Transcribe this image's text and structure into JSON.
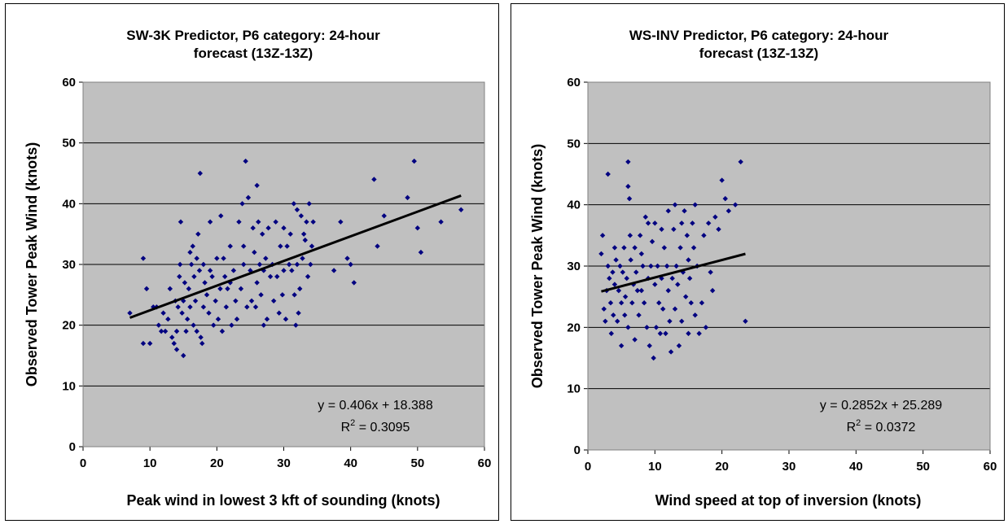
{
  "chart_data": [
    {
      "type": "scatter",
      "title_line1": "SW-3K Predictor, P6 category: 24-hour",
      "title_line2": "forecast (13Z-13Z)",
      "xlabel": "Peak wind in lowest 3 kft of sounding (knots)",
      "ylabel": "Observed Tower Peak Wind (knots)",
      "xlim": [
        0,
        60
      ],
      "ylim": [
        0,
        60
      ],
      "xticks": [
        "0",
        "10",
        "20",
        "30",
        "40",
        "50",
        "60"
      ],
      "yticks": [
        "0",
        "10",
        "20",
        "30",
        "40",
        "50",
        "60"
      ],
      "grid": "horizontal",
      "plot_bg": "#c0c0c0",
      "marker_color": "#000080",
      "equation": "y = 0.406x + 18.388",
      "r2_prefix": "R",
      "r2_sup": "2",
      "r2_value": " = 0.3095",
      "trendline": {
        "slope": 0.406,
        "intercept": 18.388,
        "x_range": [
          7,
          56.5
        ]
      },
      "points": [
        [
          7,
          22
        ],
        [
          9,
          17
        ],
        [
          9,
          31
        ],
        [
          9.5,
          26
        ],
        [
          10,
          17
        ],
        [
          10.5,
          23
        ],
        [
          11,
          23
        ],
        [
          11.3,
          20
        ],
        [
          11.7,
          19
        ],
        [
          12,
          22
        ],
        [
          12.3,
          19
        ],
        [
          12.7,
          21
        ],
        [
          13,
          26
        ],
        [
          13.3,
          18
        ],
        [
          13.6,
          17
        ],
        [
          13.8,
          24
        ],
        [
          14,
          16
        ],
        [
          14,
          19
        ],
        [
          14.2,
          23
        ],
        [
          14.4,
          28
        ],
        [
          14.5,
          30
        ],
        [
          14.6,
          37
        ],
        [
          14.8,
          22
        ],
        [
          15,
          15
        ],
        [
          15,
          24
        ],
        [
          15.2,
          27
        ],
        [
          15.4,
          19
        ],
        [
          15.6,
          21
        ],
        [
          15.8,
          26
        ],
        [
          16,
          32
        ],
        [
          16,
          23
        ],
        [
          16.2,
          30
        ],
        [
          16.4,
          33
        ],
        [
          16.5,
          20
        ],
        [
          16.6,
          28
        ],
        [
          16.8,
          24
        ],
        [
          17,
          19
        ],
        [
          17,
          31
        ],
        [
          17.2,
          35
        ],
        [
          17.4,
          29
        ],
        [
          17.5,
          45
        ],
        [
          17.6,
          18
        ],
        [
          17.8,
          17
        ],
        [
          18,
          23
        ],
        [
          18,
          30
        ],
        [
          18.2,
          27
        ],
        [
          18.5,
          25
        ],
        [
          18.8,
          22
        ],
        [
          19,
          29
        ],
        [
          19,
          37
        ],
        [
          19.3,
          28
        ],
        [
          19.5,
          20
        ],
        [
          19.8,
          24
        ],
        [
          20,
          31
        ],
        [
          20.2,
          21
        ],
        [
          20.5,
          26
        ],
        [
          20.6,
          38
        ],
        [
          20.8,
          19
        ],
        [
          21,
          31
        ],
        [
          21.2,
          28
        ],
        [
          21.4,
          23
        ],
        [
          21.6,
          26
        ],
        [
          22,
          27
        ],
        [
          22,
          33
        ],
        [
          22.2,
          20
        ],
        [
          22.5,
          29
        ],
        [
          22.8,
          24
        ],
        [
          23,
          21
        ],
        [
          23.3,
          37
        ],
        [
          23.6,
          26
        ],
        [
          23.8,
          40
        ],
        [
          24,
          30
        ],
        [
          24,
          33
        ],
        [
          24.3,
          47
        ],
        [
          24.5,
          23
        ],
        [
          24.7,
          41
        ],
        [
          25,
          29
        ],
        [
          25.2,
          24
        ],
        [
          25.4,
          36
        ],
        [
          25.6,
          32
        ],
        [
          25.8,
          23
        ],
        [
          26,
          43
        ],
        [
          26,
          27
        ],
        [
          26.2,
          37
        ],
        [
          26.4,
          30
        ],
        [
          26.6,
          25
        ],
        [
          26.8,
          35
        ],
        [
          27,
          20
        ],
        [
          27,
          29
        ],
        [
          27.3,
          31
        ],
        [
          27.5,
          21
        ],
        [
          27.7,
          36
        ],
        [
          28,
          28
        ],
        [
          28.3,
          30
        ],
        [
          28.5,
          24
        ],
        [
          28.8,
          37
        ],
        [
          29,
          28
        ],
        [
          29.3,
          22
        ],
        [
          29.5,
          33
        ],
        [
          29.8,
          25
        ],
        [
          30,
          29
        ],
        [
          30,
          36
        ],
        [
          30.3,
          21
        ],
        [
          30.5,
          33
        ],
        [
          30.8,
          30
        ],
        [
          31,
          35
        ],
        [
          31.2,
          29
        ],
        [
          31.5,
          40
        ],
        [
          31.6,
          25
        ],
        [
          31.8,
          20
        ],
        [
          32,
          30
        ],
        [
          32,
          39
        ],
        [
          32.2,
          22
        ],
        [
          32.4,
          26
        ],
        [
          32.6,
          38
        ],
        [
          32.8,
          31
        ],
        [
          33,
          35
        ],
        [
          33.2,
          34
        ],
        [
          33.4,
          37
        ],
        [
          33.6,
          28
        ],
        [
          33.8,
          40
        ],
        [
          34,
          30
        ],
        [
          34.2,
          33
        ],
        [
          34.4,
          37
        ],
        [
          37.5,
          29
        ],
        [
          38.5,
          37
        ],
        [
          39.5,
          31
        ],
        [
          40,
          30
        ],
        [
          40.5,
          27
        ],
        [
          43.5,
          44
        ],
        [
          44,
          33
        ],
        [
          45,
          38
        ],
        [
          48.5,
          41
        ],
        [
          49.5,
          47
        ],
        [
          50,
          36
        ],
        [
          50.5,
          32
        ],
        [
          53.5,
          37
        ],
        [
          56.5,
          39
        ]
      ]
    },
    {
      "type": "scatter",
      "title_line1": "WS-INV Predictor, P6 category: 24-hour",
      "title_line2": "forecast (13Z-13Z)",
      "xlabel": "Wind speed at top of inversion (knots)",
      "ylabel": "Observed Tower Peak Wind (knots)",
      "xlim": [
        0,
        60
      ],
      "ylim": [
        0,
        60
      ],
      "xticks": [
        "0",
        "10",
        "20",
        "30",
        "40",
        "50",
        "60"
      ],
      "yticks": [
        "0",
        "10",
        "20",
        "30",
        "40",
        "50",
        "60"
      ],
      "grid": "horizontal",
      "plot_bg": "#c0c0c0",
      "marker_color": "#000080",
      "equation": "y = 0.2852x + 25.289",
      "r2_prefix": "R",
      "r2_sup": "2",
      "r2_value": " = 0.0372",
      "trendline": {
        "slope": 0.2852,
        "intercept": 25.289,
        "x_range": [
          2,
          23.5
        ]
      },
      "points": [
        [
          2,
          32
        ],
        [
          2.2,
          35
        ],
        [
          2.4,
          23
        ],
        [
          2.6,
          21
        ],
        [
          2.8,
          26
        ],
        [
          3,
          45
        ],
        [
          3,
          30
        ],
        [
          3.2,
          28
        ],
        [
          3.4,
          24
        ],
        [
          3.5,
          19
        ],
        [
          3.7,
          29
        ],
        [
          3.8,
          22
        ],
        [
          4,
          33
        ],
        [
          4,
          27
        ],
        [
          4.2,
          31
        ],
        [
          4.4,
          21
        ],
        [
          4.6,
          26
        ],
        [
          4.8,
          30
        ],
        [
          5,
          24
        ],
        [
          5,
          17
        ],
        [
          5.2,
          29
        ],
        [
          5.4,
          33
        ],
        [
          5.5,
          22
        ],
        [
          5.6,
          25
        ],
        [
          5.8,
          28
        ],
        [
          6,
          47
        ],
        [
          6,
          43
        ],
        [
          6,
          20
        ],
        [
          6.2,
          41
        ],
        [
          6.3,
          35
        ],
        [
          6.4,
          31
        ],
        [
          6.6,
          24
        ],
        [
          6.8,
          27
        ],
        [
          7,
          33
        ],
        [
          7,
          18
        ],
        [
          7.2,
          29
        ],
        [
          7.4,
          26
        ],
        [
          7.6,
          22
        ],
        [
          7.8,
          35
        ],
        [
          8,
          32
        ],
        [
          8,
          26
        ],
        [
          8.2,
          30
        ],
        [
          8.4,
          24
        ],
        [
          8.6,
          38
        ],
        [
          8.8,
          20
        ],
        [
          9,
          37
        ],
        [
          9,
          28
        ],
        [
          9.2,
          17
        ],
        [
          9.4,
          30
        ],
        [
          9.6,
          34
        ],
        [
          9.8,
          15
        ],
        [
          10,
          37
        ],
        [
          10,
          27
        ],
        [
          10.2,
          20
        ],
        [
          10.4,
          30
        ],
        [
          10.6,
          24
        ],
        [
          10.8,
          19
        ],
        [
          11,
          36
        ],
        [
          11,
          28
        ],
        [
          11.2,
          23
        ],
        [
          11.4,
          33
        ],
        [
          11.6,
          19
        ],
        [
          11.8,
          30
        ],
        [
          12,
          39
        ],
        [
          12,
          26
        ],
        [
          12.2,
          21
        ],
        [
          12.4,
          16
        ],
        [
          12.6,
          28
        ],
        [
          12.8,
          36
        ],
        [
          13,
          23
        ],
        [
          13,
          40
        ],
        [
          13.2,
          30
        ],
        [
          13.4,
          27
        ],
        [
          13.6,
          17
        ],
        [
          13.8,
          33
        ],
        [
          14,
          37
        ],
        [
          14,
          21
        ],
        [
          14.2,
          29
        ],
        [
          14.4,
          39
        ],
        [
          14.6,
          25
        ],
        [
          14.8,
          35
        ],
        [
          15,
          31
        ],
        [
          15,
          19
        ],
        [
          15.2,
          28
        ],
        [
          15.4,
          24
        ],
        [
          15.6,
          37
        ],
        [
          15.8,
          33
        ],
        [
          16,
          40
        ],
        [
          16,
          22
        ],
        [
          16.3,
          30
        ],
        [
          16.6,
          19
        ],
        [
          17,
          24
        ],
        [
          17.3,
          35
        ],
        [
          17.6,
          20
        ],
        [
          18,
          37
        ],
        [
          18.3,
          29
        ],
        [
          18.6,
          26
        ],
        [
          19,
          38
        ],
        [
          19.5,
          36
        ],
        [
          20,
          44
        ],
        [
          20.5,
          41
        ],
        [
          21,
          39
        ],
        [
          22,
          40
        ],
        [
          22.8,
          47
        ],
        [
          23.5,
          21
        ]
      ]
    }
  ]
}
